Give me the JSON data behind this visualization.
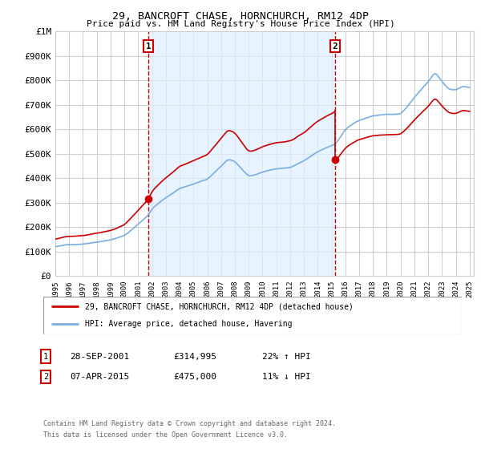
{
  "title": "29, BANCROFT CHASE, HORNCHURCH, RM12 4DP",
  "subtitle": "Price paid vs. HM Land Registry's House Price Index (HPI)",
  "legend_line1": "29, BANCROFT CHASE, HORNCHURCH, RM12 4DP (detached house)",
  "legend_line2": "HPI: Average price, detached house, Havering",
  "annotation1_label": "1",
  "annotation1_date": "28-SEP-2001",
  "annotation1_price": "£314,995",
  "annotation1_hpi": "22% ↑ HPI",
  "annotation2_label": "2",
  "annotation2_date": "07-APR-2015",
  "annotation2_price": "£475,000",
  "annotation2_hpi": "11% ↓ HPI",
  "footnote1": "Contains HM Land Registry data © Crown copyright and database right 2024.",
  "footnote2": "This data is licensed under the Open Government Licence v3.0.",
  "sale1_x": 2001.75,
  "sale1_y": 314995,
  "sale2_x": 2015.27,
  "sale2_y": 475000,
  "color_property": "#cc0000",
  "color_hpi": "#7aade0",
  "color_vline": "#cc0000",
  "color_shade": "#ddeeff",
  "ylim": [
    0,
    1000000
  ],
  "xlim": [
    1995.0,
    2025.3
  ],
  "background_color": "#ffffff",
  "grid_color": "#cccccc"
}
